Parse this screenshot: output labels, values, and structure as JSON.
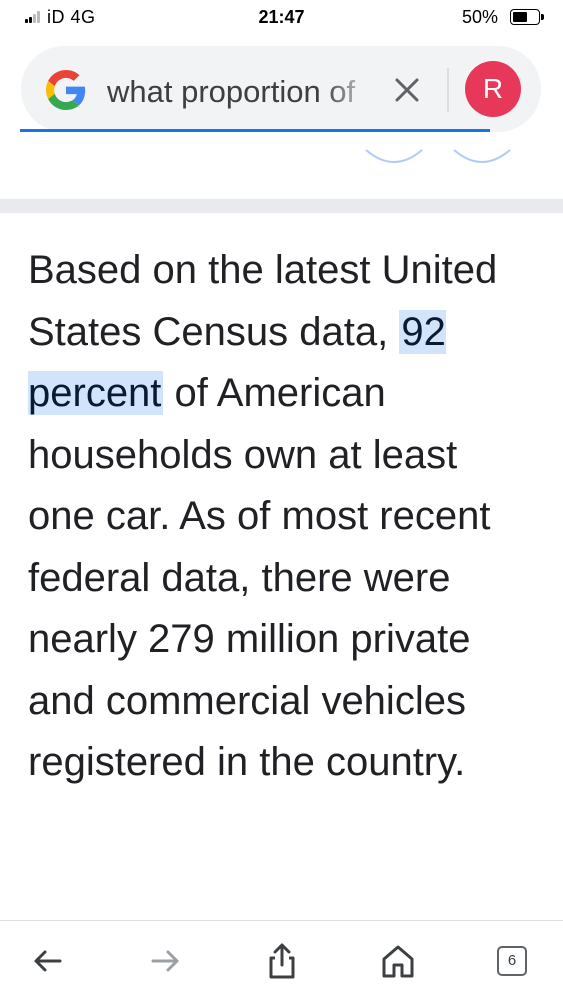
{
  "status_bar": {
    "carrier": "iD  4G",
    "time": "21:47",
    "battery_percent": "50%",
    "battery_level": 0.5
  },
  "search": {
    "query": "what proportion of",
    "avatar_letter": "R",
    "accent_color": "#1a73e8",
    "avatar_color": "#e8385a"
  },
  "answer": {
    "before": "Based on the latest United States Census data, ",
    "highlight": "92 percent",
    "after": " of American households own at least one car. As of most recent federal data, there were nearly 279 million private and commercial vehicles registered in the country.",
    "highlight_color": "#d2e3fc"
  },
  "toolbar": {
    "tab_count": "6",
    "icons": [
      "back-icon",
      "forward-icon",
      "share-icon",
      "home-icon",
      "tabs-icon"
    ]
  }
}
